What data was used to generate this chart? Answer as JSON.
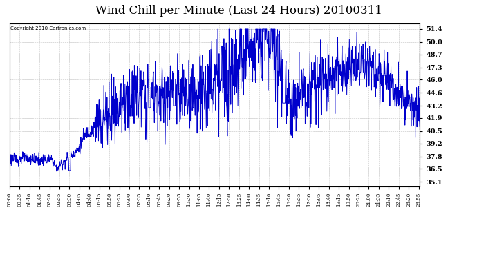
{
  "title": "Wind Chill per Minute (Last 24 Hours) 20100311",
  "copyright": "Copyright 2010 Cartronics.com",
  "line_color": "#0000CC",
  "background_color": "#ffffff",
  "grid_color": "#b0b0b0",
  "yticks": [
    35.1,
    36.5,
    37.8,
    39.2,
    40.5,
    41.9,
    43.2,
    44.6,
    46.0,
    47.3,
    48.7,
    50.0,
    51.4
  ],
  "ylim": [
    34.6,
    52.0
  ],
  "title_fontsize": 12,
  "xtick_interval_minutes": 35,
  "total_minutes": 1440,
  "figsize": [
    6.9,
    3.75
  ],
  "dpi": 100
}
